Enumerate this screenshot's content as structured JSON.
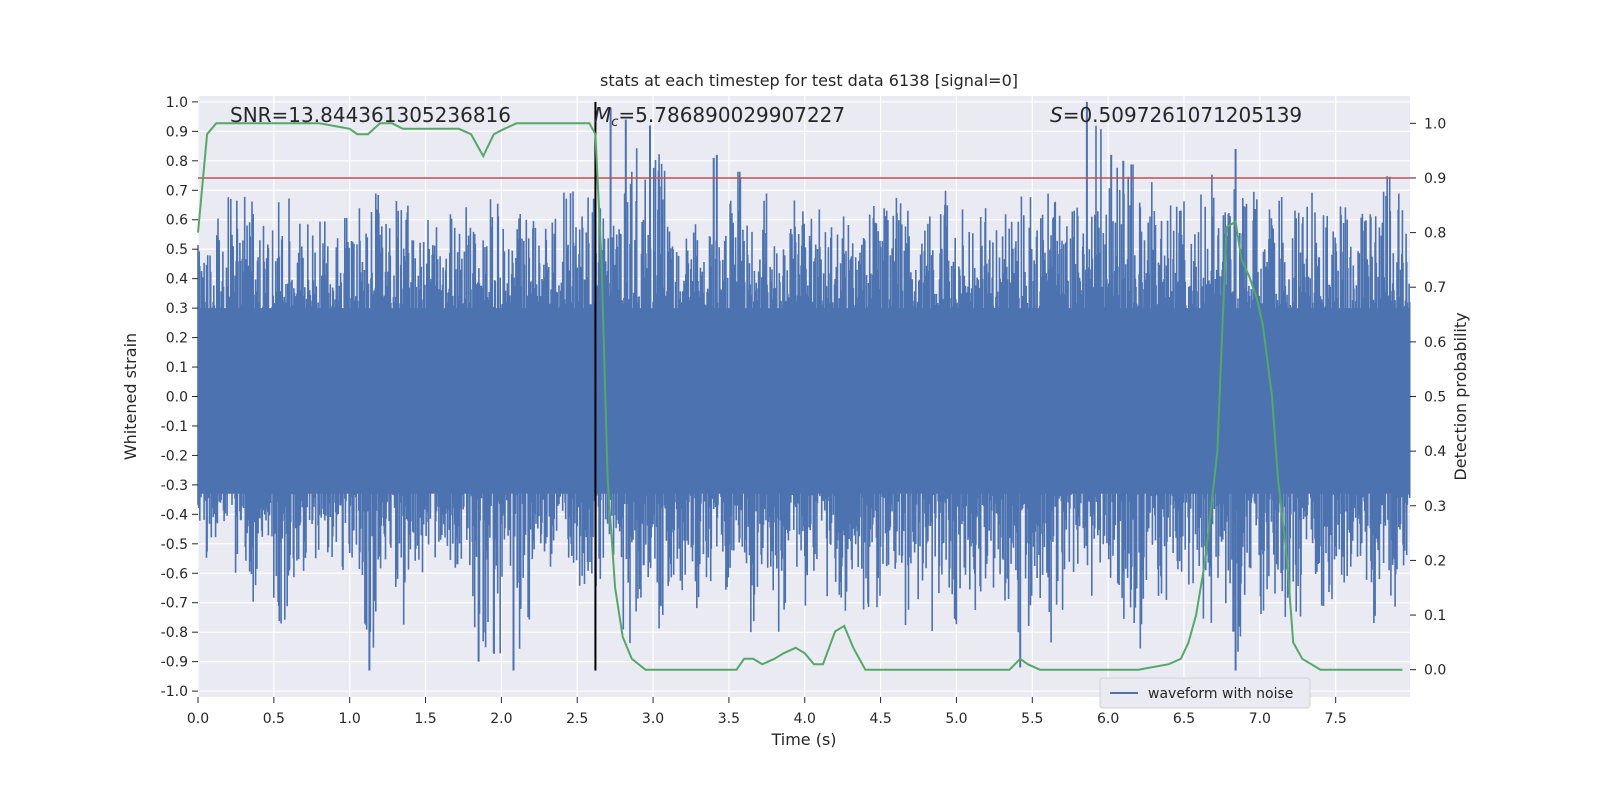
{
  "chart_data": {
    "type": "line",
    "title": "stats at each timestep for test data 6138 [signal=0]",
    "xlabel": "Time (s)",
    "ylabel": "Whitened strain",
    "ylabel_right": "Detection probability",
    "xlim": [
      0.0,
      7.99
    ],
    "ylim": [
      -1.02,
      1.02
    ],
    "ylim_right": [
      -0.05,
      1.05
    ],
    "x_ticks": [
      "0.0",
      "0.5",
      "1.0",
      "1.5",
      "2.0",
      "2.5",
      "3.0",
      "3.5",
      "4.0",
      "4.5",
      "5.0",
      "5.5",
      "6.0",
      "6.5",
      "7.0",
      "7.5"
    ],
    "y_ticks": [
      "1.0",
      "0.9",
      "0.8",
      "0.7",
      "0.6",
      "0.5",
      "0.4",
      "0.3",
      "0.2",
      "0.1",
      "0.0",
      "-0.1",
      "-0.2",
      "-0.3",
      "-0.4",
      "-0.5",
      "-0.6",
      "-0.7",
      "-0.8",
      "-0.9",
      "-1.0"
    ],
    "y_ticks_right": [
      "1.0",
      "0.9",
      "0.8",
      "0.7",
      "0.6",
      "0.5",
      "0.4",
      "0.3",
      "0.2",
      "0.1",
      "0.0"
    ],
    "grid": true,
    "legend_position": "bottom-right",
    "colors": {
      "background": "#eaeaf2",
      "waveform": "#4c72b0",
      "probability": "#55a868",
      "threshold": "#c44e52",
      "marker": "#000000"
    },
    "annotations": {
      "snr": "SNR=13.844361305236816",
      "mc_symbol": "M",
      "mc_sub": "c",
      "mc_value": "=5.786890029907227",
      "s_symbol": "S",
      "s_value": "=0.5097261071205139"
    },
    "threshold_line": {
      "axis": "right",
      "y": 0.9
    },
    "marker_line": {
      "x": 2.62,
      "y_range": [
        -0.93,
        1.0
      ]
    },
    "series": [
      {
        "name": "waveform with noise",
        "axis": "left",
        "note_envelope": "dense noise; per-segment upper/lower envelope",
        "x": [
          0.0,
          0.1,
          0.2,
          0.3,
          0.4,
          0.5,
          0.6,
          0.7,
          0.8,
          0.9,
          1.0,
          1.1,
          1.2,
          1.3,
          1.4,
          1.5,
          1.6,
          1.7,
          1.8,
          1.9,
          2.0,
          2.1,
          2.2,
          2.3,
          2.4,
          2.5,
          2.6,
          2.7,
          2.8,
          2.9,
          3.0,
          3.1,
          3.2,
          3.3,
          3.4,
          3.5,
          3.6,
          3.7,
          3.8,
          3.9,
          4.0,
          4.1,
          4.2,
          4.3,
          4.4,
          4.5,
          4.6,
          4.7,
          4.8,
          4.9,
          5.0,
          5.1,
          5.2,
          5.3,
          5.4,
          5.5,
          5.6,
          5.7,
          5.8,
          5.9,
          6.0,
          6.1,
          6.2,
          6.3,
          6.4,
          6.5,
          6.6,
          6.7,
          6.8,
          6.9,
          7.0,
          7.1,
          7.2,
          7.3,
          7.4,
          7.5,
          7.6,
          7.7,
          7.8,
          7.9
        ],
        "upper": [
          0.55,
          0.62,
          0.7,
          0.7,
          0.58,
          0.66,
          0.72,
          0.6,
          0.62,
          0.68,
          0.65,
          0.7,
          0.6,
          0.68,
          0.75,
          0.6,
          0.66,
          0.68,
          0.62,
          0.67,
          0.6,
          0.66,
          0.6,
          0.62,
          0.7,
          0.72,
          0.68,
          0.6,
          0.86,
          0.74,
          0.9,
          0.68,
          0.62,
          0.58,
          0.6,
          0.82,
          0.7,
          0.72,
          0.6,
          0.68,
          0.66,
          0.68,
          0.62,
          0.6,
          0.66,
          0.64,
          0.68,
          0.6,
          0.64,
          0.7,
          0.64,
          0.66,
          0.6,
          0.66,
          0.68,
          0.62,
          0.7,
          0.66,
          0.68,
          1.0,
          0.78,
          0.8,
          0.74,
          0.68,
          0.76,
          0.7,
          0.78,
          0.66,
          0.84,
          0.72,
          0.68,
          0.7,
          0.7,
          0.7,
          0.72,
          0.66,
          0.68,
          0.64,
          0.76,
          0.7
        ],
        "lower": [
          -0.58,
          -0.55,
          -0.6,
          -0.72,
          -0.65,
          -0.8,
          -0.62,
          -0.6,
          -0.55,
          -0.62,
          -0.8,
          -0.92,
          -0.6,
          -0.86,
          -0.6,
          -0.58,
          -0.62,
          -0.6,
          -0.88,
          -0.9,
          -0.66,
          -0.92,
          -0.6,
          -0.62,
          -0.6,
          -0.65,
          -0.66,
          -0.6,
          -0.84,
          -0.7,
          -0.8,
          -0.66,
          -0.72,
          -0.72,
          -0.76,
          -0.6,
          -0.82,
          -0.7,
          -0.84,
          -0.6,
          -0.8,
          -0.72,
          -0.76,
          -0.78,
          -0.74,
          -0.6,
          -0.8,
          -0.7,
          -0.8,
          -0.82,
          -0.68,
          -0.74,
          -0.66,
          -0.7,
          -0.9,
          -0.72,
          -0.86,
          -0.6,
          -0.68,
          -0.6,
          -0.7,
          -0.84,
          -0.86,
          -0.7,
          -0.6,
          -0.72,
          -0.8,
          -0.74,
          -0.93,
          -0.6,
          -0.74,
          -0.8,
          -0.8,
          -0.64,
          -0.78,
          -0.7,
          -0.6,
          -0.82,
          -0.74,
          -0.7
        ],
        "spikes_up": [
          [
            5.86,
            1.0
          ],
          [
            6.02,
            0.82
          ],
          [
            6.1,
            0.8
          ],
          [
            6.84,
            0.84
          ],
          [
            2.72,
            0.98
          ],
          [
            2.82,
            0.94
          ],
          [
            2.98,
            0.92
          ],
          [
            3.4,
            0.81
          ],
          [
            3.42,
            0.82
          ]
        ],
        "spikes_down": [
          [
            1.13,
            -0.93
          ],
          [
            2.08,
            -0.93
          ],
          [
            6.84,
            -0.93
          ],
          [
            5.42,
            -0.92
          ],
          [
            1.85,
            -0.9
          ],
          [
            1.95,
            -0.87
          ]
        ]
      },
      {
        "name": "",
        "axis": "right",
        "x": [
          0.0,
          0.06,
          0.12,
          0.2,
          0.4,
          0.6,
          0.8,
          1.0,
          1.05,
          1.12,
          1.2,
          1.28,
          1.35,
          1.42,
          1.5,
          1.58,
          1.65,
          1.72,
          1.8,
          1.88,
          1.95,
          2.02,
          2.1,
          2.2,
          2.4,
          2.5,
          2.58,
          2.62,
          2.66,
          2.7,
          2.75,
          2.8,
          2.86,
          2.95,
          3.05,
          3.2,
          3.4,
          3.55,
          3.6,
          3.66,
          3.72,
          3.8,
          3.86,
          3.94,
          4.0,
          4.06,
          4.12,
          4.2,
          4.26,
          4.32,
          4.4,
          4.5,
          4.7,
          5.0,
          5.2,
          5.35,
          5.42,
          5.47,
          5.55,
          5.7,
          5.8,
          6.0,
          6.2,
          6.4,
          6.48,
          6.53,
          6.58,
          6.64,
          6.72,
          6.78,
          6.84,
          6.88,
          6.93,
          6.98,
          7.02,
          7.08,
          7.12,
          7.18,
          7.22,
          7.28,
          7.4,
          7.6,
          7.8,
          7.94
        ],
        "y": [
          0.8,
          0.98,
          1.0,
          1.0,
          1.0,
          1.0,
          1.0,
          0.99,
          0.98,
          0.98,
          1.0,
          1.0,
          0.99,
          0.99,
          0.99,
          0.99,
          0.99,
          0.99,
          0.98,
          0.94,
          0.98,
          0.99,
          1.0,
          1.0,
          1.0,
          1.0,
          1.0,
          0.98,
          0.75,
          0.35,
          0.15,
          0.06,
          0.02,
          0.0,
          0.0,
          0.0,
          0.0,
          0.0,
          0.02,
          0.02,
          0.01,
          0.02,
          0.03,
          0.04,
          0.03,
          0.01,
          0.01,
          0.07,
          0.08,
          0.04,
          0.0,
          0.0,
          0.0,
          0.0,
          0.0,
          0.0,
          0.02,
          0.01,
          0.0,
          0.0,
          0.0,
          0.0,
          0.0,
          0.01,
          0.02,
          0.05,
          0.1,
          0.2,
          0.4,
          0.81,
          0.82,
          0.75,
          0.72,
          0.68,
          0.63,
          0.5,
          0.35,
          0.2,
          0.05,
          0.02,
          0.0,
          0.0,
          0.0,
          0.0
        ]
      }
    ]
  }
}
